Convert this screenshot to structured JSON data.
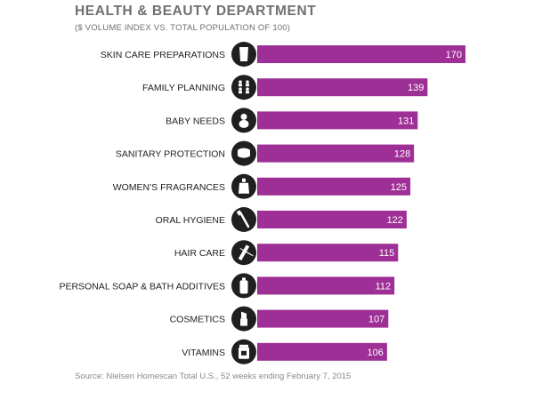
{
  "colors": {
    "bar": "#9e2f96",
    "icon_bg": "#1f1f1f",
    "icon_fg": "#ffffff",
    "title": "#6f6f6f"
  },
  "chart_data": {
    "type": "bar",
    "orientation": "horizontal",
    "title": "HEALTH & BEAUTY DEPARTMENT",
    "subtitle": "($ VOLUME INDEX VS. TOTAL POPULATION OF 100)",
    "source": "Source: Nielsen Homescan Total U.S., 52 weeks ending February 7, 2015",
    "categories": [
      "SKIN CARE PREPARATIONS",
      "FAMILY PLANNING",
      "BABY NEEDS",
      "SANITARY PROTECTION",
      "WOMEN'S FRAGRANCES",
      "ORAL HYGIENE",
      "HAIR CARE",
      "PERSONAL SOAP & BATH ADDITIVES",
      "COSMETICS",
      "VITAMINS"
    ],
    "values": [
      170,
      139,
      131,
      128,
      125,
      122,
      115,
      112,
      107,
      106
    ],
    "icons": [
      "lotion-bottle-icon",
      "family-icon",
      "baby-icon",
      "sanitary-pad-icon",
      "perfume-icon",
      "toothbrush-icon",
      "comb-icon",
      "soap-bottle-icon",
      "lipstick-icon",
      "vitamin-jar-icon"
    ],
    "xlim": [
      0,
      170
    ],
    "grid": false,
    "legend": "none"
  }
}
